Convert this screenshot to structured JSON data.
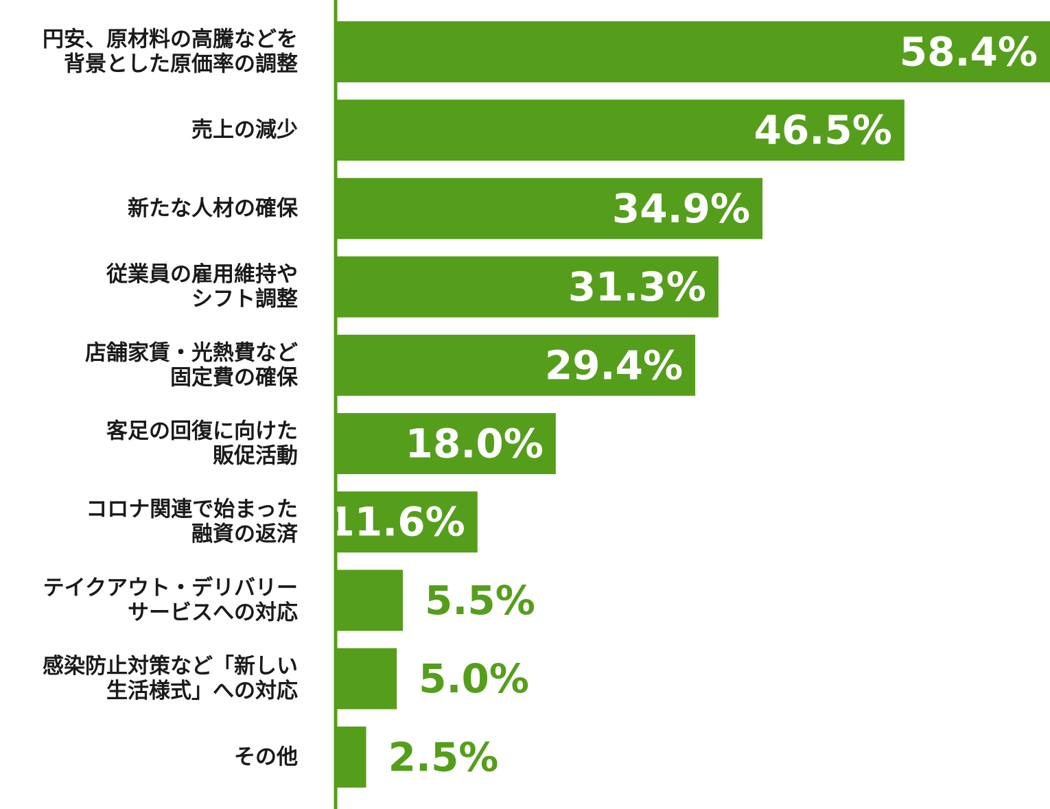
{
  "chart_data": {
    "type": "bar",
    "orientation": "horizontal",
    "categories": [
      [
        "円安、原材料の高騰などを",
        "背景とした原価率の調整"
      ],
      [
        "売上の減少"
      ],
      [
        "新たな人材の確保"
      ],
      [
        "従業員の雇用維持や",
        "シフト調整"
      ],
      [
        "店舗家賃・光熱費など",
        "固定費の確保"
      ],
      [
        "客足の回復に向けた",
        "販促活動"
      ],
      [
        "コロナ関連で始まった",
        "融資の返済"
      ],
      [
        "テイクアウト・デリバリー",
        "サービスへの対応"
      ],
      [
        "感染防止対策など「新しい",
        "生活様式」への対応"
      ],
      [
        "その他"
      ]
    ],
    "values": [
      58.4,
      46.5,
      34.9,
      31.3,
      29.4,
      18.0,
      11.6,
      5.5,
      5.0,
      2.5
    ],
    "value_labels": [
      "58.4%",
      "46.5%",
      "34.9%",
      "31.3%",
      "29.4%",
      "18.0%",
      "11.6%",
      "5.5%",
      "5.0%",
      "2.5%"
    ],
    "xlim": [
      0,
      58.4
    ],
    "grid": false,
    "legend": "none",
    "colors": {
      "bar": "#559e1b",
      "axis": "#559e1b",
      "label_inside": "#ffffff",
      "label_outside": "#559e1b",
      "category_text": "#1a1a1a"
    }
  }
}
